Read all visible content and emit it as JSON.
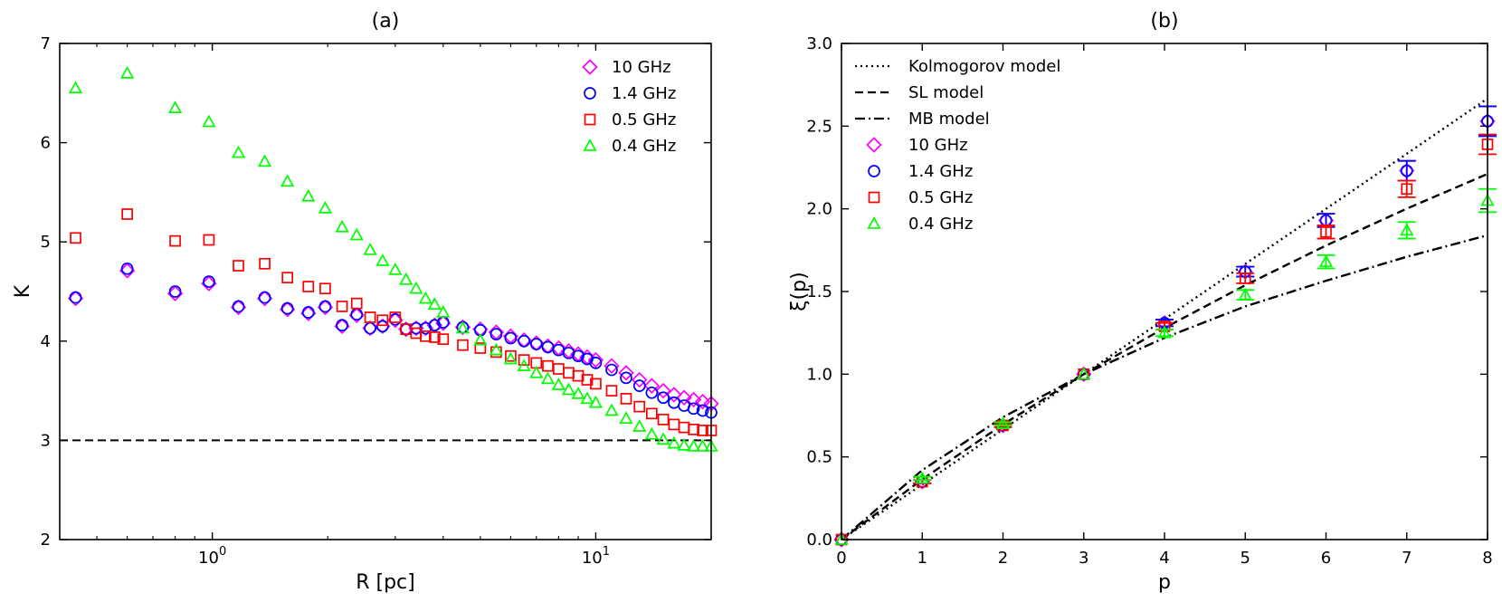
{
  "chart_data": [
    {
      "type": "scatter",
      "title": "(a)",
      "xlabel": "R [pc]",
      "ylabel": "K",
      "xscale": "log",
      "xlim": [
        0.4,
        20
      ],
      "ylim": [
        2,
        7
      ],
      "xticks": [
        {
          "value": 1,
          "base": "10",
          "exp": "0"
        },
        {
          "value": 10,
          "base": "10",
          "exp": "1"
        }
      ],
      "yticks": [
        "2",
        "3",
        "4",
        "5",
        "6",
        "7"
      ],
      "reference_line": {
        "y": 3,
        "style": "dashed",
        "color": "#000000"
      },
      "legend": {
        "placement": "top-right"
      },
      "series": [
        {
          "name": "10 GHz",
          "marker": "diamond",
          "color": "#ff00ff",
          "x": [
            0.44,
            0.6,
            0.8,
            0.98,
            1.17,
            1.37,
            1.57,
            1.78,
            1.97,
            2.18,
            2.38,
            2.58,
            2.78,
            3.0,
            3.2,
            3.4,
            3.6,
            3.8,
            4.0,
            4.5,
            5.0,
            5.5,
            6.0,
            6.5,
            7.0,
            7.5,
            8.0,
            8.5,
            9.0,
            9.5,
            10.0,
            11.0,
            12.0,
            13.0,
            14.0,
            15.0,
            16.0,
            17.0,
            18.0,
            19.0,
            20.0
          ],
          "y": [
            4.43,
            4.71,
            4.48,
            4.58,
            4.34,
            4.43,
            4.32,
            4.28,
            4.34,
            4.15,
            4.26,
            4.13,
            4.15,
            4.21,
            4.12,
            4.13,
            4.13,
            4.16,
            4.18,
            4.14,
            4.12,
            4.09,
            4.05,
            4.01,
            3.98,
            3.95,
            3.93,
            3.9,
            3.87,
            3.84,
            3.81,
            3.75,
            3.68,
            3.61,
            3.55,
            3.5,
            3.46,
            3.43,
            3.41,
            3.39,
            3.37
          ]
        },
        {
          "name": "1.4 GHz",
          "marker": "circle",
          "color": "#0000ff",
          "x": [
            0.44,
            0.6,
            0.8,
            0.98,
            1.17,
            1.37,
            1.57,
            1.78,
            1.97,
            2.18,
            2.38,
            2.58,
            2.78,
            3.0,
            3.2,
            3.4,
            3.6,
            3.8,
            4.0,
            4.5,
            5.0,
            5.5,
            6.0,
            6.5,
            7.0,
            7.5,
            8.0,
            8.5,
            9.0,
            9.5,
            10.0,
            11.0,
            12.0,
            13.0,
            14.0,
            15.0,
            16.0,
            17.0,
            18.0,
            19.0,
            20.0
          ],
          "y": [
            4.44,
            4.73,
            4.5,
            4.6,
            4.35,
            4.44,
            4.33,
            4.29,
            4.35,
            4.16,
            4.27,
            4.13,
            4.15,
            4.22,
            4.12,
            4.13,
            4.13,
            4.16,
            4.19,
            4.14,
            4.11,
            4.07,
            4.03,
            4.0,
            3.97,
            3.94,
            3.91,
            3.88,
            3.85,
            3.82,
            3.78,
            3.71,
            3.63,
            3.55,
            3.48,
            3.43,
            3.38,
            3.35,
            3.32,
            3.3,
            3.28
          ]
        },
        {
          "name": "0.5 GHz",
          "marker": "square",
          "color": "#ff0000",
          "x": [
            0.44,
            0.6,
            0.8,
            0.98,
            1.17,
            1.37,
            1.57,
            1.78,
            1.97,
            2.18,
            2.38,
            2.58,
            2.78,
            3.0,
            3.2,
            3.4,
            3.6,
            3.8,
            4.0,
            4.5,
            5.0,
            5.5,
            6.0,
            6.5,
            7.0,
            7.5,
            8.0,
            8.5,
            9.0,
            9.5,
            10.0,
            11.0,
            12.0,
            13.0,
            14.0,
            15.0,
            16.0,
            17.0,
            18.0,
            19.0,
            20.0
          ],
          "y": [
            5.04,
            5.28,
            5.01,
            5.02,
            4.76,
            4.78,
            4.64,
            4.55,
            4.53,
            4.35,
            4.38,
            4.24,
            4.21,
            4.24,
            4.12,
            4.08,
            4.05,
            4.04,
            4.02,
            3.96,
            3.93,
            3.89,
            3.85,
            3.81,
            3.78,
            3.75,
            3.72,
            3.68,
            3.65,
            3.61,
            3.57,
            3.5,
            3.42,
            3.34,
            3.27,
            3.21,
            3.16,
            3.13,
            3.11,
            3.1,
            3.1
          ]
        },
        {
          "name": "0.4 GHz",
          "marker": "triangle",
          "color": "#00ff00",
          "x": [
            0.44,
            0.6,
            0.8,
            0.98,
            1.17,
            1.37,
            1.57,
            1.78,
            1.97,
            2.18,
            2.38,
            2.58,
            2.78,
            3.0,
            3.2,
            3.4,
            3.6,
            3.8,
            4.0,
            4.5,
            5.0,
            5.5,
            6.0,
            6.5,
            7.0,
            7.5,
            8.0,
            8.5,
            9.0,
            9.5,
            10.0,
            11.0,
            12.0,
            13.0,
            14.0,
            15.0,
            16.0,
            17.0,
            18.0,
            19.0,
            20.0
          ],
          "y": [
            6.55,
            6.7,
            6.35,
            6.21,
            5.9,
            5.81,
            5.61,
            5.46,
            5.34,
            5.15,
            5.07,
            4.92,
            4.81,
            4.72,
            4.62,
            4.53,
            4.43,
            4.37,
            4.29,
            4.13,
            4.01,
            3.91,
            3.82,
            3.75,
            3.68,
            3.62,
            3.56,
            3.51,
            3.47,
            3.42,
            3.38,
            3.3,
            3.22,
            3.14,
            3.06,
            3.01,
            2.97,
            2.95,
            2.94,
            2.94,
            2.94
          ]
        }
      ]
    },
    {
      "type": "scatter",
      "title": "(b)",
      "xlabel": "p",
      "ylabel": "ξ(p)",
      "xlim": [
        0,
        8
      ],
      "ylim": [
        0,
        3
      ],
      "xticks": [
        "0",
        "1",
        "2",
        "3",
        "4",
        "5",
        "6",
        "7",
        "8"
      ],
      "yticks": [
        "0.0",
        "0.5",
        "1.0",
        "1.5",
        "2.0",
        "2.5",
        "3.0"
      ],
      "legend": {
        "placement": "top-left"
      },
      "models": [
        {
          "name": "Kolmogorov model",
          "style": "dotted",
          "color": "#000000",
          "x": [
            0,
            1,
            2,
            3,
            4,
            5,
            6,
            7,
            8
          ],
          "y": [
            0,
            0.333,
            0.667,
            1.0,
            1.333,
            1.667,
            2.0,
            2.333,
            2.667
          ]
        },
        {
          "name": "SL model",
          "style": "dashed",
          "color": "#000000",
          "x": [
            0,
            1,
            2,
            3,
            4,
            5,
            6,
            7,
            8
          ],
          "y": [
            0,
            0.364,
            0.696,
            1.0,
            1.28,
            1.538,
            1.778,
            2.001,
            2.211
          ]
        },
        {
          "name": "MB model",
          "style": "dashdot",
          "color": "#000000",
          "x": [
            0,
            1,
            2,
            3,
            4,
            5,
            6,
            7,
            8
          ],
          "y": [
            0,
            0.42,
            0.74,
            1.0,
            1.22,
            1.41,
            1.565,
            1.71,
            1.84
          ]
        }
      ],
      "series": [
        {
          "name": "10 GHz",
          "marker": "diamond",
          "color": "#ff00ff",
          "x": [
            0,
            1,
            2,
            3,
            4,
            5,
            6,
            7,
            8
          ],
          "y": [
            0,
            0.35,
            0.69,
            1.0,
            1.31,
            1.62,
            1.93,
            2.23,
            2.53
          ],
          "yerr": [
            0,
            0.01,
            0.01,
            0,
            0.02,
            0.03,
            0.04,
            0.06,
            0.09
          ]
        },
        {
          "name": "1.4 GHz",
          "marker": "circle",
          "color": "#0000ff",
          "x": [
            0,
            1,
            2,
            3,
            4,
            5,
            6,
            7,
            8
          ],
          "y": [
            0,
            0.35,
            0.69,
            1.0,
            1.31,
            1.62,
            1.93,
            2.23,
            2.53
          ],
          "yerr": [
            0,
            0.01,
            0.01,
            0,
            0.02,
            0.03,
            0.04,
            0.06,
            0.09
          ]
        },
        {
          "name": "0.5 GHz",
          "marker": "square",
          "color": "#ff0000",
          "x": [
            0,
            1,
            2,
            3,
            4,
            5,
            6,
            7,
            8
          ],
          "y": [
            0,
            0.35,
            0.69,
            1.0,
            1.29,
            1.58,
            1.86,
            2.12,
            2.39
          ],
          "yerr": [
            0,
            0.01,
            0.01,
            0,
            0.02,
            0.03,
            0.04,
            0.05,
            0.06
          ]
        },
        {
          "name": "0.4 GHz",
          "marker": "triangle",
          "color": "#00ff00",
          "x": [
            0,
            1,
            2,
            3,
            4,
            5,
            6,
            7,
            8
          ],
          "y": [
            0,
            0.37,
            0.7,
            1.0,
            1.25,
            1.48,
            1.68,
            1.87,
            2.05
          ],
          "yerr": [
            0,
            0.01,
            0.01,
            0,
            0.02,
            0.03,
            0.04,
            0.05,
            0.07
          ]
        }
      ]
    }
  ]
}
